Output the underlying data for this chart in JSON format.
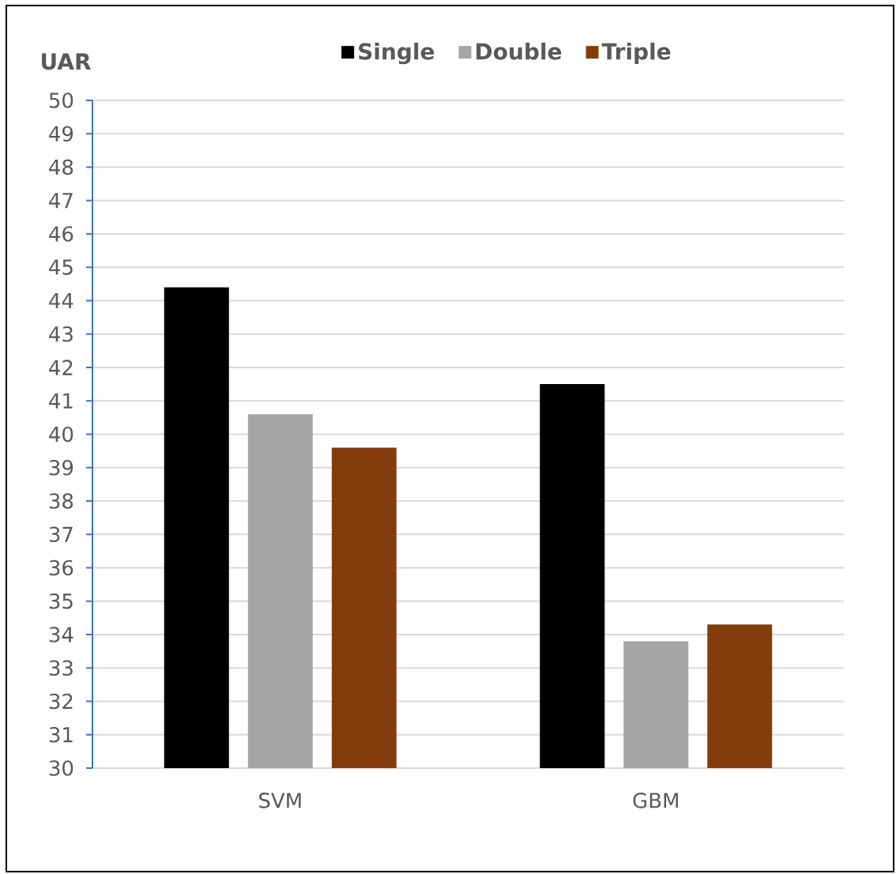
{
  "chart_data": {
    "type": "bar",
    "ylabel": "UAR",
    "categories": [
      "SVM",
      "GBM"
    ],
    "series": [
      {
        "name": "Single",
        "color": "#000000",
        "values": [
          44.4,
          41.5
        ]
      },
      {
        "name": "Double",
        "color": "#a5a5a5",
        "values": [
          40.6,
          33.8
        ]
      },
      {
        "name": "Triple",
        "color": "#843c0c",
        "values": [
          39.6,
          34.3
        ]
      }
    ],
    "ylim": [
      30,
      50
    ],
    "yticks": [
      30,
      31,
      32,
      33,
      34,
      35,
      36,
      37,
      38,
      39,
      40,
      41,
      42,
      43,
      44,
      45,
      46,
      47,
      48,
      49,
      50
    ],
    "grid": "y",
    "legend": "top"
  }
}
